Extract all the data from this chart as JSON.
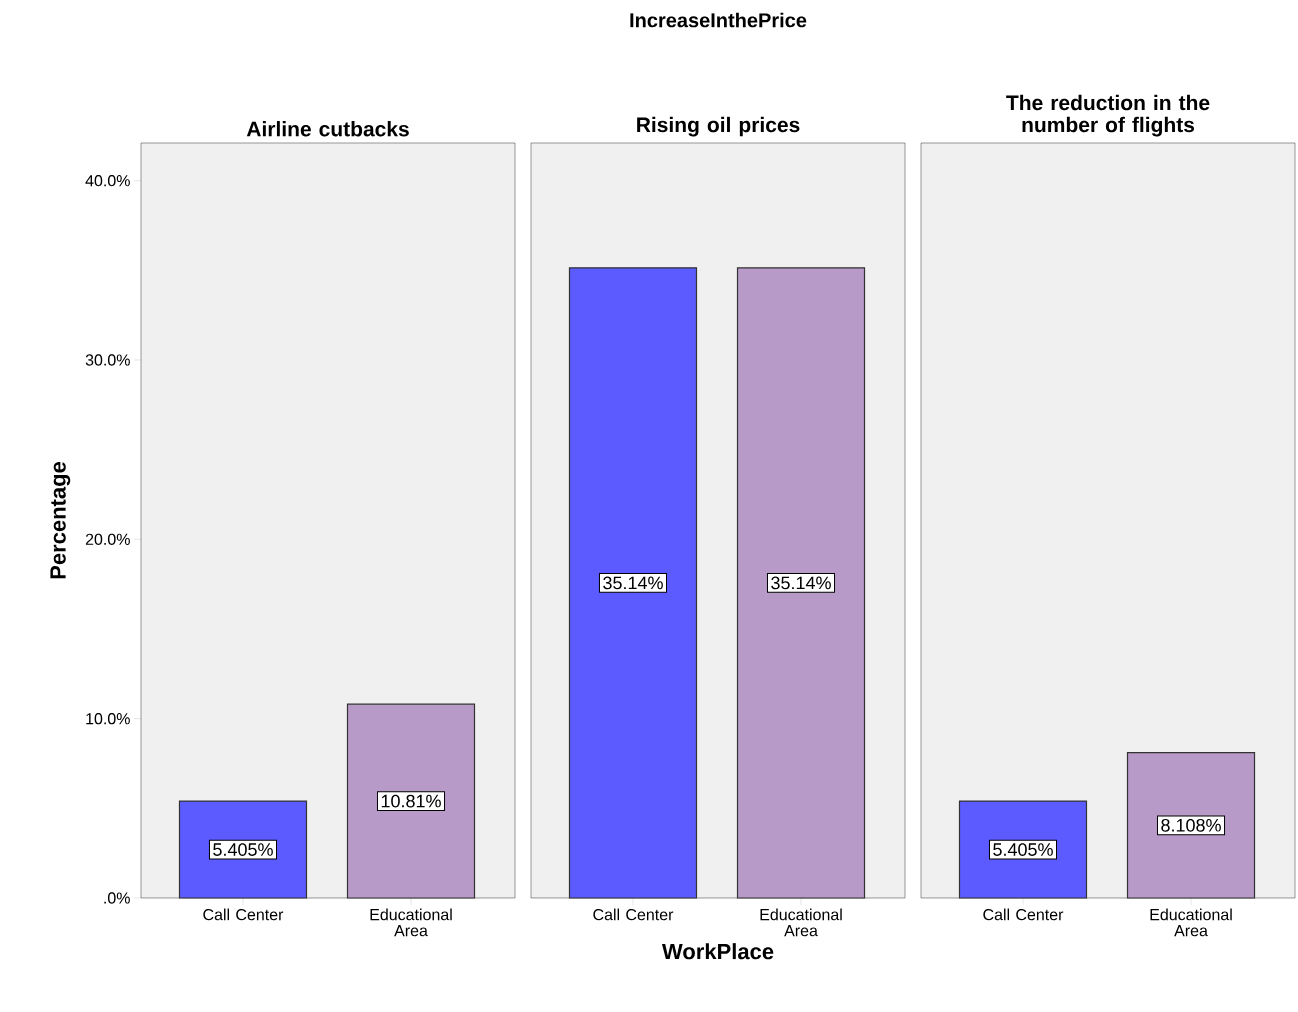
{
  "chart_data": [
    {
      "type": "bar",
      "title": "Airline cutbacks",
      "ylabel": "Percentage",
      "categories": [
        "Call Center",
        "Educational Area"
      ],
      "values": [
        5.405,
        10.81
      ],
      "colors": [
        "#5b5bff",
        "#b89ac8"
      ],
      "value_labels": [
        "5.405%",
        "10.81%"
      ],
      "ylim": [
        0,
        42.1
      ],
      "yticks": [
        {
          "value": 0,
          "label": ".0%"
        },
        {
          "value": 10,
          "label": "10.0%"
        },
        {
          "value": 20,
          "label": "20.0%"
        },
        {
          "value": 30,
          "label": "30.0%"
        },
        {
          "value": 40,
          "label": "40.0%"
        }
      ]
    },
    {
      "type": "bar",
      "title": "Rising oil prices",
      "xlabel": "WorkPlace",
      "annotations": [
        "IncreaseInthePrice"
      ],
      "categories": [
        "Call Center",
        "Educational Area"
      ],
      "values": [
        35.14,
        35.14
      ],
      "colors": [
        "#5b5bff",
        "#b89ac8"
      ],
      "value_labels": [
        "35.14%",
        "35.14%"
      ],
      "ylim": [
        0,
        42.1
      ],
      "tick_labels": "x"
    },
    {
      "type": "bar",
      "title": "The reduction in the number of flights",
      "categories": [
        "Call Center",
        "Educational Area"
      ],
      "values": [
        5.405,
        8.108
      ],
      "colors": [
        "#5b5bff",
        "#b89ac8"
      ],
      "value_labels": [
        "5.405%",
        "8.108%"
      ],
      "ylim": [
        0,
        42.1
      ],
      "tick_labels": "x"
    }
  ]
}
